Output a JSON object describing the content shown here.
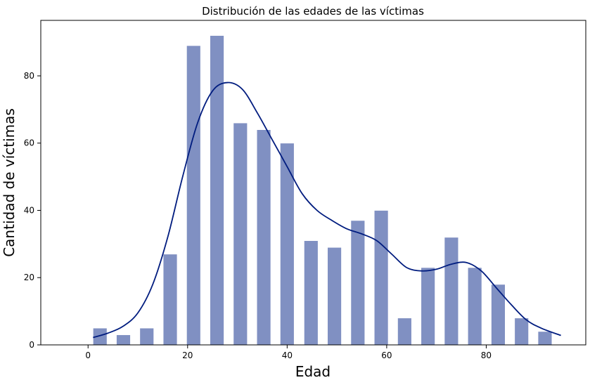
{
  "chart_data": {
    "type": "bar",
    "title": "Distribución de las edades de las víctimas",
    "xlabel": "Edad",
    "ylabel": "Cantidad de víctimas",
    "xlim": [
      -9.5,
      100
    ],
    "ylim": [
      0,
      96.5
    ],
    "xticks": [
      0,
      20,
      40,
      60,
      80
    ],
    "yticks": [
      0,
      20,
      40,
      60,
      80
    ],
    "grid": false,
    "legend": "none",
    "bar_color": "#8090c2",
    "kde_color": "#001c7f",
    "bin_width": 4.7,
    "bars": [
      {
        "x": 2.4,
        "value": 5
      },
      {
        "x": 7.1,
        "value": 3
      },
      {
        "x": 11.8,
        "value": 5
      },
      {
        "x": 16.5,
        "value": 27
      },
      {
        "x": 21.2,
        "value": 89
      },
      {
        "x": 25.9,
        "value": 92
      },
      {
        "x": 30.6,
        "value": 66
      },
      {
        "x": 35.3,
        "value": 64
      },
      {
        "x": 40.0,
        "value": 60
      },
      {
        "x": 44.8,
        "value": 31
      },
      {
        "x": 49.5,
        "value": 29
      },
      {
        "x": 54.2,
        "value": 37
      },
      {
        "x": 58.9,
        "value": 40
      },
      {
        "x": 63.6,
        "value": 8
      },
      {
        "x": 68.3,
        "value": 23
      },
      {
        "x": 73.0,
        "value": 32
      },
      {
        "x": 77.7,
        "value": 23
      },
      {
        "x": 82.4,
        "value": 18
      },
      {
        "x": 87.1,
        "value": 8
      },
      {
        "x": 91.8,
        "value": 4
      }
    ],
    "kde": {
      "x": [
        1,
        4,
        7,
        10,
        13,
        16,
        19,
        22,
        25,
        28,
        31,
        34,
        37,
        40,
        43,
        46,
        49,
        52,
        55,
        58,
        61,
        64,
        67,
        70,
        73,
        76,
        79,
        82,
        85,
        88,
        91,
        95
      ],
      "y": [
        2.2,
        3.5,
        5.5,
        9.5,
        18,
        32,
        50,
        66,
        75.5,
        78,
        76,
        69,
        61,
        53,
        45,
        40,
        37,
        34.5,
        33,
        31,
        27,
        23,
        22,
        22.5,
        24,
        24.5,
        22,
        17,
        12,
        7.5,
        5,
        2.8
      ]
    }
  }
}
